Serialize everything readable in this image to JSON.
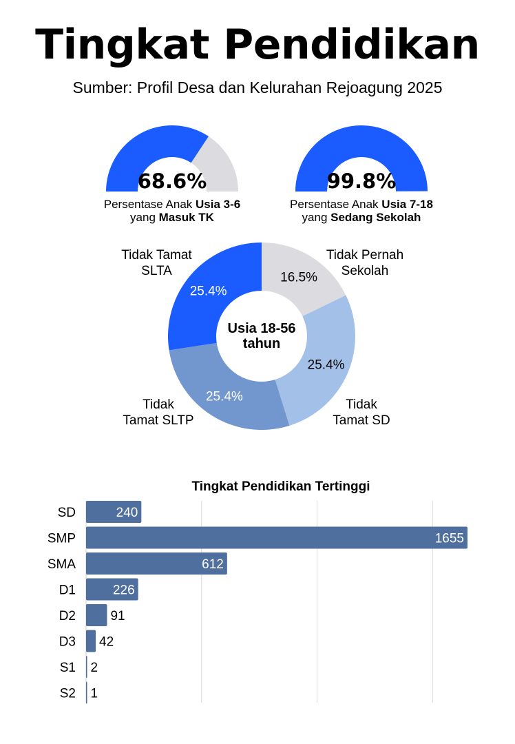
{
  "header": {
    "title": "Tingkat Pendidikan",
    "subtitle": "Sumber: Profil Desa dan Kelurahan Rejoagung 2025"
  },
  "colors": {
    "accent": "#1a5cff",
    "gauge_track": "#dcdce0",
    "bar": "#4f6f9e",
    "grid": "#d9d9d9"
  },
  "gauges": [
    {
      "value_label": "68.6%",
      "fraction": 0.686,
      "caption_pre": "Persentase Anak ",
      "caption_bold1": "Usia 3-6",
      "caption_mid": "yang ",
      "caption_bold2": "Masuk TK"
    },
    {
      "value_label": "99.8%",
      "fraction": 0.998,
      "caption_pre": "Persentase Anak ",
      "caption_bold1": "Usia 7-18",
      "caption_mid": "yang ",
      "caption_bold2": "Sedang Sekolah"
    }
  ],
  "chart_data": [
    {
      "type": "pie",
      "center_label_line1": "Usia 18-56",
      "center_label_line2": "tahun",
      "slices": [
        {
          "label_line1": "Tidak Pernah",
          "label_line2": "Sekolah",
          "value": 16.5,
          "value_label": "16.5%",
          "color": "#dcdce0",
          "text_color": "#000000"
        },
        {
          "label_line1": "Tidak",
          "label_line2": "Tamat SD",
          "value": 25.4,
          "value_label": "25.4%",
          "color": "#a3c0e8",
          "text_color": "#000000"
        },
        {
          "label_line1": "Tidak",
          "label_line2": "Tamat SLTP",
          "value": 25.4,
          "value_label": "25.4%",
          "color": "#7297ce",
          "text_color": "#ffffff"
        },
        {
          "label_line1": "Tidak Tamat",
          "label_line2": "SLTA",
          "value": 25.4,
          "value_label": "25.4%",
          "color": "#1a5cff",
          "text_color": "#ffffff"
        }
      ]
    },
    {
      "type": "bar",
      "orientation": "horizontal",
      "title": "Tingkat Pendidikan Tertinggi",
      "categories": [
        "SD",
        "SMP",
        "SMA",
        "D1",
        "D2",
        "D3",
        "S1",
        "S2"
      ],
      "values": [
        240,
        1655,
        612,
        226,
        91,
        42,
        2,
        1
      ],
      "xlim": [
        0,
        1800
      ],
      "grid": true
    }
  ]
}
